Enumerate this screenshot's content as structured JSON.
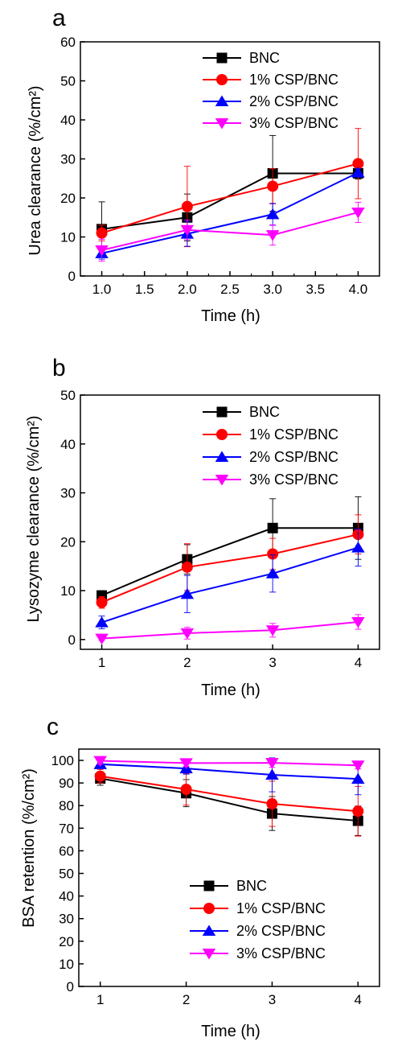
{
  "chart_data": [
    {
      "type": "line",
      "panel": "a",
      "xlabel": "Time (h)",
      "ylabel": "Urea clearance (%/cm²)",
      "xlim": [
        0.75,
        4.25
      ],
      "ylim": [
        0,
        60
      ],
      "xticks": [
        "1.0",
        "1.5",
        "2.0",
        "2.5",
        "3.0",
        "3.5",
        "4.0"
      ],
      "xtick_values": [
        1.0,
        1.5,
        2.0,
        2.5,
        3.0,
        3.5,
        4.0
      ],
      "yticks": [
        "0",
        "10",
        "20",
        "30",
        "40",
        "50",
        "60"
      ],
      "ytick_values": [
        0,
        10,
        20,
        30,
        40,
        50,
        60
      ],
      "legend_position": "top-right",
      "x": [
        1,
        2,
        3,
        4
      ],
      "series": [
        {
          "name": "BNC",
          "color": "#000000",
          "marker": "square",
          "values": [
            12,
            15,
            26.3,
            26.3
          ],
          "errors": [
            7,
            6,
            9.7,
            1.5
          ]
        },
        {
          "name": "1% CSP/BNC",
          "color": "#ff0000",
          "marker": "circle",
          "values": [
            11,
            17.8,
            23,
            28.8
          ],
          "errors": [
            2,
            10.3,
            4.5,
            9
          ]
        },
        {
          "name": "2% CSP/BNC",
          "color": "#0000ff",
          "marker": "triangle-up",
          "values": [
            5.8,
            10.8,
            15.8,
            26.5
          ],
          "errors": [
            1.5,
            3.2,
            2.8,
            1
          ]
        },
        {
          "name": "3% CSP/BNC",
          "color": "#ff00ff",
          "marker": "triangle-down",
          "values": [
            6.6,
            11.8,
            10.5,
            16.3
          ],
          "errors": [
            2.8,
            2.5,
            2.6,
            2.6
          ]
        }
      ]
    },
    {
      "type": "line",
      "panel": "b",
      "xlabel": "Time (h)",
      "ylabel": "Lysozyme clearance (%/cm²)",
      "xlim": [
        0.75,
        4.25
      ],
      "ylim": [
        -2,
        50
      ],
      "xticks": [
        "1",
        "2",
        "3",
        "4"
      ],
      "xtick_values": [
        1,
        2,
        3,
        4
      ],
      "yticks": [
        "0",
        "10",
        "20",
        "30",
        "40",
        "50"
      ],
      "ytick_values": [
        0,
        10,
        20,
        30,
        40,
        50
      ],
      "legend_position": "top-right",
      "x": [
        1,
        2,
        3,
        4
      ],
      "series": [
        {
          "name": "BNC",
          "color": "#000000",
          "marker": "square",
          "values": [
            9,
            16.4,
            22.8,
            22.8
          ],
          "errors": [
            1,
            3,
            6,
            6.4
          ]
        },
        {
          "name": "1% CSP/BNC",
          "color": "#ff0000",
          "marker": "circle",
          "values": [
            7.6,
            14.8,
            17.5,
            21.5
          ],
          "errors": [
            1.2,
            4.8,
            3.2,
            4
          ]
        },
        {
          "name": "2% CSP/BNC",
          "color": "#0000ff",
          "marker": "triangle-up",
          "values": [
            3.5,
            9.3,
            13.5,
            18.8
          ],
          "errors": [
            1.3,
            3.8,
            3.8,
            3.8
          ]
        },
        {
          "name": "3% CSP/BNC",
          "color": "#ff00ff",
          "marker": "triangle-down",
          "values": [
            0.2,
            1.3,
            1.9,
            3.6
          ],
          "errors": [
            0.4,
            1.2,
            1.4,
            1.5
          ]
        }
      ]
    },
    {
      "type": "line",
      "panel": "c",
      "xlabel": "Time (h)",
      "ylabel": "BSA retention (%/cm²)",
      "xlim": [
        0.75,
        4.25
      ],
      "ylim": [
        0,
        105
      ],
      "xticks": [
        "1",
        "2",
        "3",
        "4"
      ],
      "xtick_values": [
        1,
        2,
        3,
        4
      ],
      "yticks": [
        "0",
        "10",
        "20",
        "30",
        "40",
        "50",
        "60",
        "70",
        "80",
        "90",
        "100"
      ],
      "ytick_values": [
        0,
        10,
        20,
        30,
        40,
        50,
        60,
        70,
        80,
        90,
        100
      ],
      "legend_position": "bottom-right",
      "x": [
        1,
        2,
        3,
        4
      ],
      "series": [
        {
          "name": "BNC",
          "color": "#000000",
          "marker": "square",
          "values": [
            92,
            85.5,
            76.5,
            73.3
          ],
          "errors": [
            3,
            6,
            7.5,
            6.5
          ]
        },
        {
          "name": "1% CSP/BNC",
          "color": "#ff0000",
          "marker": "circle",
          "values": [
            93,
            87.2,
            80.8,
            77.5
          ],
          "errors": [
            3,
            7,
            10,
            11
          ]
        },
        {
          "name": "2% CSP/BNC",
          "color": "#0000ff",
          "marker": "triangle-up",
          "values": [
            98.3,
            96.4,
            93.6,
            91.8
          ],
          "errors": [
            1.5,
            2.5,
            7.5,
            7
          ]
        },
        {
          "name": "3% CSP/BNC",
          "color": "#ff00ff",
          "marker": "triangle-down",
          "values": [
            99.8,
            98.8,
            98.9,
            97.8
          ],
          "errors": [
            1.5,
            1.5,
            2,
            1.5
          ]
        }
      ]
    }
  ]
}
